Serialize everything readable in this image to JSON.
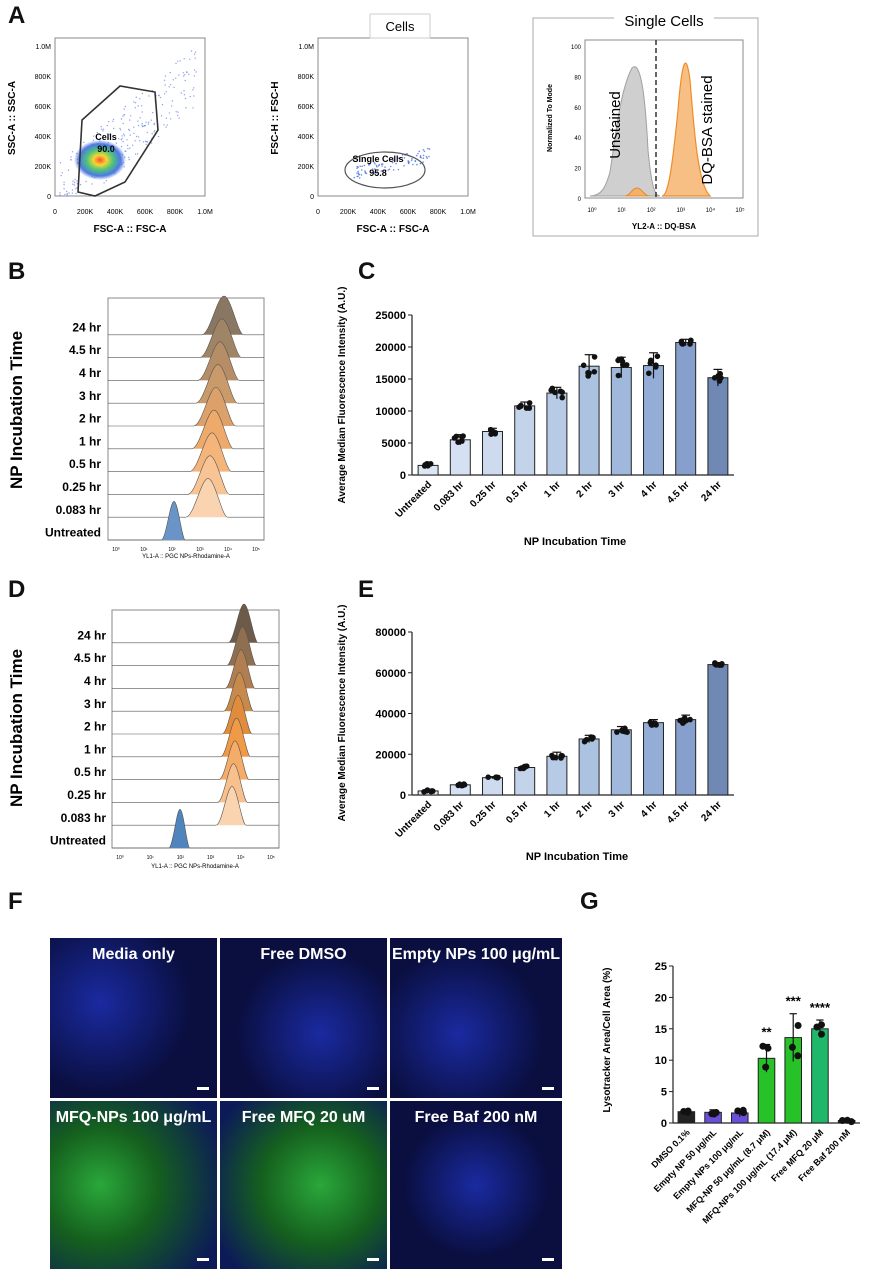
{
  "panel_labels": {
    "A": "A",
    "B": "B",
    "C": "C",
    "D": "D",
    "E": "E",
    "F": "F",
    "G": "G"
  },
  "panel_a": {
    "plot1": {
      "y_label": "SSC-A :: SSC-A",
      "x_label": "FSC-A :: FSC-A",
      "gate_name": "Cells",
      "gate_value": "90.0",
      "y_ticks": [
        "0",
        "200K",
        "400K",
        "600K",
        "800K",
        "1.0M"
      ],
      "x_ticks": [
        "0",
        "200K",
        "400K",
        "600K",
        "800K",
        "1.0M"
      ]
    },
    "plot2": {
      "title": "Cells",
      "y_label": "FSC-H :: FSC-H",
      "x_label": "FSC-A :: FSC-A",
      "gate_name": "Single Cells",
      "gate_value": "95.8",
      "y_ticks": [
        "0",
        "200K",
        "400K",
        "600K",
        "800K",
        "1.0M"
      ],
      "x_ticks": [
        "0",
        "200K",
        "400K",
        "600K",
        "800K",
        "1.0M"
      ]
    },
    "plot3": {
      "title": "Single Cells",
      "y_label": "Normalized To Mode",
      "x_label": "YL2-A :: DQ-BSA",
      "unstained": "Unstained",
      "stained": "DQ-BSA stained",
      "y_ticks": [
        "0",
        "20",
        "40",
        "60",
        "80",
        "100"
      ],
      "x_ticks": [
        "10⁰",
        "10¹",
        "10²",
        "10³",
        "10⁴",
        "10⁵"
      ]
    }
  },
  "panel_b": {
    "y_title": "NP Incubation Time",
    "x_label": "YL1-A :: PGC NPs-Rhodamine-A",
    "rows": [
      "24 hr",
      "4.5 hr",
      "4 hr",
      "3 hr",
      "2 hr",
      "1 hr",
      "0.5 hr",
      "0.25 hr",
      "0.083 hr",
      "Untreated"
    ],
    "x_ticks": [
      "10⁰",
      "10¹",
      "10²",
      "10³",
      "10⁴",
      "10⁵"
    ],
    "colors": [
      "#8a7763",
      "#a08466",
      "#b58e68",
      "#c99a6a",
      "#dca06a",
      "#eeaa6a",
      "#f5b57a",
      "#f8c494",
      "#fad4b0",
      "#6a94c8"
    ]
  },
  "panel_d": {
    "y_title": "NP Incubation Time",
    "x_label": "YL1-A :: PGC NPs-Rhodamine-A",
    "rows": [
      "24 hr",
      "4.5 hr",
      "4 hr",
      "3 hr",
      "2 hr",
      "1 hr",
      "0.5 hr",
      "0.25 hr",
      "0.083 hr",
      "Untreated"
    ],
    "x_ticks": [
      "10⁰",
      "10¹",
      "10²",
      "10³",
      "10⁴",
      "10⁵"
    ],
    "colors": [
      "#6e5a48",
      "#8f6f50",
      "#b07e50",
      "#c88a4a",
      "#e08c3c",
      "#f09a48",
      "#f5ac68",
      "#f8c08c",
      "#fad4b0",
      "#4f84bc"
    ]
  },
  "chart_data": [
    {
      "id": "C",
      "type": "bar",
      "title": "",
      "xlabel": "NP Incubation Time",
      "ylabel": "Average Median Fluorescence Intensity (A.U.)",
      "ylim": [
        0,
        25000
      ],
      "yticks": [
        "0",
        "5000",
        "10000",
        "15000",
        "20000",
        "25000"
      ],
      "categories": [
        "Untreated",
        "0.083 hr",
        "0.25 hr",
        "0.5 hr",
        "1 hr",
        "2 hr",
        "3 hr",
        "4 hr",
        "4.5 hr",
        "24 hr"
      ],
      "values": [
        1500,
        5500,
        6800,
        10800,
        12800,
        17000,
        16800,
        17100,
        20700,
        15200
      ],
      "errors": [
        300,
        800,
        500,
        600,
        900,
        1800,
        1600,
        2000,
        500,
        1300
      ],
      "colors": [
        "#dce6f3",
        "#d5e1f2",
        "#cedbee",
        "#c3d3ea",
        "#b8cbe6",
        "#acc2e1",
        "#a0b8dc",
        "#93add6",
        "#869fcc",
        "#6f88b4"
      ]
    },
    {
      "id": "E",
      "type": "bar",
      "title": "",
      "xlabel": "NP Incubation Time",
      "ylabel": "Average Median Fluorescence Intensity (A.U.)",
      "ylim": [
        0,
        80000
      ],
      "yticks": [
        "0",
        "20000",
        "40000",
        "60000",
        "80000"
      ],
      "categories": [
        "Untreated",
        "0.083 hr",
        "0.25 hr",
        "0.5 hr",
        "1 hr",
        "2 hr",
        "3 hr",
        "4 hr",
        "4.5 hr",
        "24 hr"
      ],
      "values": [
        2000,
        5000,
        8500,
        13500,
        19000,
        27500,
        32000,
        35500,
        37000,
        64000
      ],
      "errors": [
        500,
        600,
        500,
        800,
        2000,
        1800,
        1600,
        1500,
        2200,
        1000
      ],
      "colors": [
        "#dce6f3",
        "#d5e1f2",
        "#cedbee",
        "#c3d3ea",
        "#b8cbe6",
        "#acc2e1",
        "#a0b8dc",
        "#93add6",
        "#869fcc",
        "#6f88b4"
      ]
    },
    {
      "id": "G",
      "type": "bar",
      "title": "",
      "xlabel": "",
      "ylabel": "Lysotracker Area/Cell Area (%)",
      "ylim": [
        0,
        25
      ],
      "yticks": [
        "0",
        "5",
        "10",
        "15",
        "20",
        "25"
      ],
      "categories": [
        "DMSO 0.1%",
        "Empty NP 50 μg/mL",
        "Empty NPs 100 μg/mL",
        "MFQ-NP 50 μg/mL (8.7 μM)",
        "MFQ-NPs 100 μg/mL (17.4 μM)",
        "Free MFQ 20 μM",
        "Free Baf 200 nM"
      ],
      "values": [
        1.8,
        1.7,
        1.6,
        10.3,
        13.6,
        15.0,
        0.4
      ],
      "errors": [
        0.3,
        0.4,
        0.6,
        2.2,
        3.8,
        1.4,
        0.3
      ],
      "annotations": [
        "",
        "",
        "",
        "**",
        "***",
        "****",
        ""
      ],
      "colors": [
        "#222222",
        "#6a4fd8",
        "#6a4fd8",
        "#27c227",
        "#27c227",
        "#1fb86a",
        "#222222"
      ]
    }
  ],
  "panel_f": {
    "tiles": [
      "Media only",
      "Free DMSO",
      "Empty NPs 100 μg/mL",
      "MFQ-NPs 100 μg/mL",
      "Free MFQ 20 uM",
      "Free Baf 200 nM"
    ]
  }
}
